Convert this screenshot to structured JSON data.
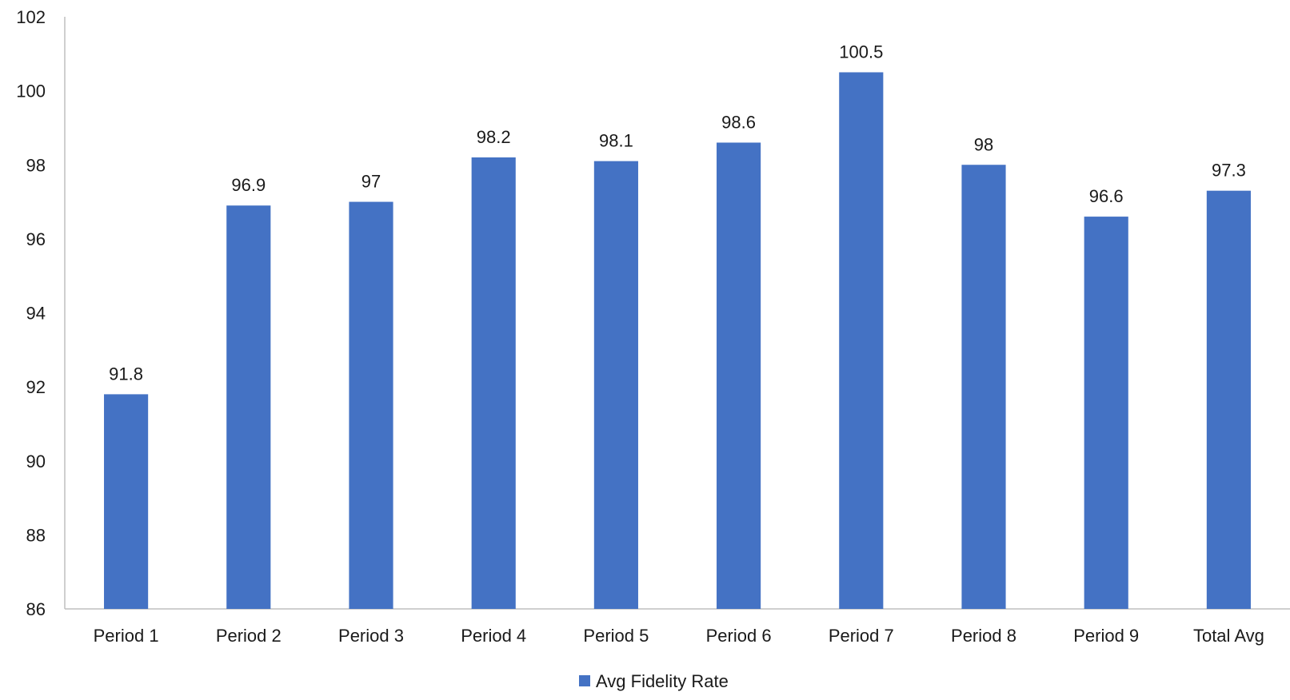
{
  "chart_data": {
    "type": "bar",
    "categories": [
      "Period 1",
      "Period 2",
      "Period 3",
      "Period 4",
      "Period 5",
      "Period 6",
      "Period 7",
      "Period 8",
      "Period 9",
      "Total Avg"
    ],
    "series": [
      {
        "name": "Avg Fidelity Rate",
        "color": "#4472C4",
        "values": [
          91.8,
          96.9,
          97,
          98.2,
          98.1,
          98.6,
          100.5,
          98,
          96.6,
          97.3
        ],
        "labels": [
          "91.8",
          "96.9",
          "97",
          "98.2",
          "98.1",
          "98.6",
          "100.5",
          "98",
          "96.6",
          "97.3"
        ]
      }
    ],
    "ylim": [
      86,
      102
    ],
    "yticks": [
      "86",
      "88",
      "90",
      "92",
      "94",
      "96",
      "98",
      "100",
      "102"
    ],
    "title": "",
    "xlabel": "",
    "ylabel": "",
    "grid": false,
    "legend": "bottom",
    "axis_color": "#BFBFBF"
  }
}
